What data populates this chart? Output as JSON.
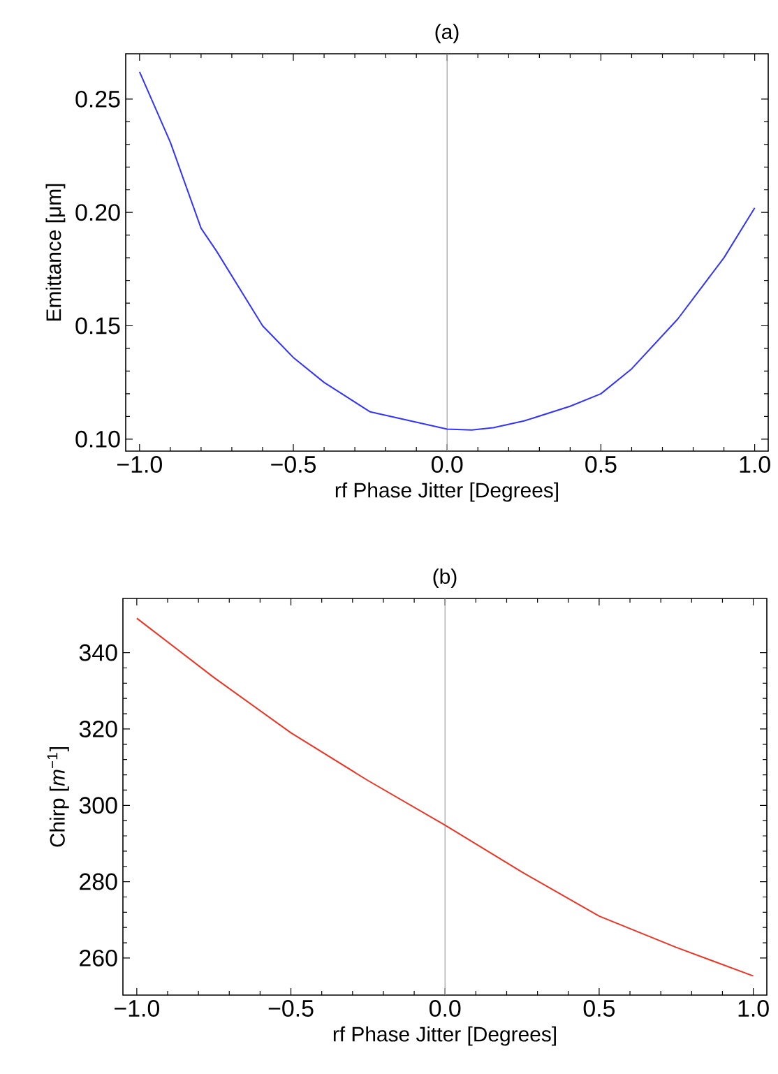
{
  "chart_data": [
    {
      "type": "line",
      "title": "(a)",
      "xlabel": "rf Phase Jitter [Degrees]",
      "ylabel": "Emittance [μm]",
      "marker": "none",
      "x": [
        -1,
        -0.9,
        -0.8,
        -0.75,
        -0.6,
        -0.5,
        -0.4,
        -0.25,
        0,
        0.08,
        0.15,
        0.25,
        0.4,
        0.5,
        0.6,
        0.75,
        0.9,
        1
      ],
      "series": [
        {
          "color": "#3333ff",
          "values": [
            0.262,
            0.231,
            0.193,
            0.183,
            0.15,
            0.136,
            0.125,
            0.112,
            0.1044,
            0.104,
            0.105,
            0.108,
            0.1145,
            0.12,
            0.131,
            0.153,
            0.18,
            0.202
          ]
        }
      ],
      "xlim": [
        -1.045,
        1.044
      ],
      "ylim": [
        0.0947,
        0.27
      ],
      "xticks": [
        {
          "value": -1,
          "label": "−1.0"
        },
        {
          "value": -0.5,
          "label": "−0.5"
        },
        {
          "value": 0,
          "label": "0.0"
        },
        {
          "value": 0.5,
          "label": "0.5"
        },
        {
          "value": 1,
          "label": "1.0"
        }
      ],
      "yticks": [
        {
          "value": 0.1,
          "label": "0.10"
        },
        {
          "value": 0.15,
          "label": "0.15"
        },
        {
          "value": 0.2,
          "label": "0.20"
        },
        {
          "value": 0.25,
          "label": "0.25"
        }
      ],
      "ref_lines": [
        {
          "axis": "x",
          "value": 0,
          "color": "#a0a0a0"
        }
      ]
    },
    {
      "type": "line",
      "title": "(b)",
      "xlabel": "rf Phase Jitter [Degrees]",
      "ylabel": "Chirp [*m*$^{−1}$]",
      "marker": "none",
      "x": [
        -1,
        -0.75,
        -0.5,
        -0.25,
        0,
        0.25,
        0.5,
        0.75,
        1
      ],
      "series": [
        {
          "color": "#ee3322",
          "values": [
            349.0,
            333.5,
            319.0,
            306.5,
            294.8,
            282.5,
            271.0,
            262.8,
            255.3
          ]
        }
      ],
      "xlim": [
        -1.045,
        1.044
      ],
      "ylim": [
        250.3,
        354.2
      ],
      "xticks": [
        {
          "value": -1,
          "label": "−1.0"
        },
        {
          "value": -0.5,
          "label": "−0.5"
        },
        {
          "value": 0,
          "label": "0.0"
        },
        {
          "value": 0.5,
          "label": "0.5"
        },
        {
          "value": 1,
          "label": "1.0"
        }
      ],
      "yticks": [
        260,
        280,
        300,
        320,
        340
      ],
      "ref_lines": [
        {
          "axis": "x",
          "value": 0,
          "color": "#a0a0a0"
        }
      ]
    }
  ]
}
